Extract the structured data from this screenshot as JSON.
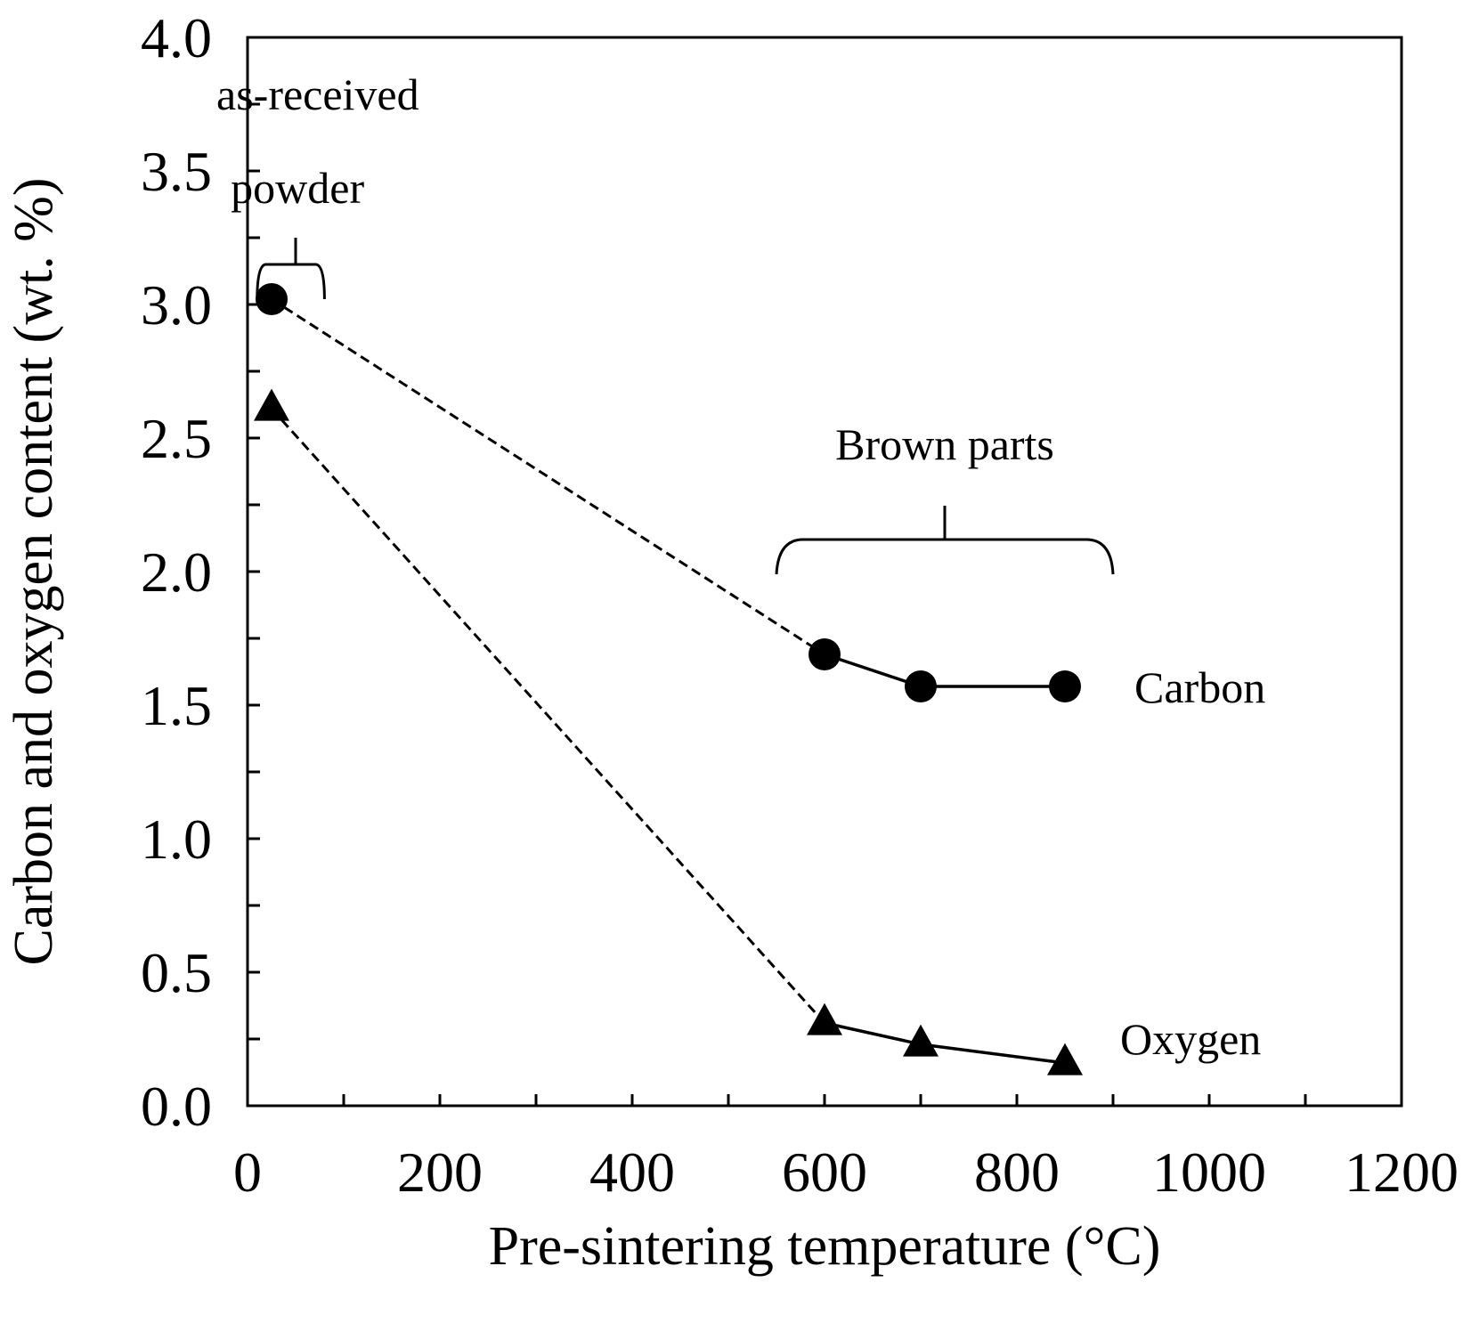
{
  "chart_data": {
    "type": "line",
    "title": "",
    "xlabel": "Pre-sintering temperature (°C)",
    "ylabel": "Carbon and oxygen content (wt. %)",
    "xlim": [
      0,
      1200
    ],
    "ylim": [
      0,
      4.0
    ],
    "xticks": [
      0,
      200,
      400,
      600,
      800,
      1000,
      1200
    ],
    "xtick_labels": [
      "0",
      "200",
      "400",
      "600",
      "800",
      "1000",
      "1200"
    ],
    "yticks": [
      0,
      0.5,
      1.0,
      1.5,
      2.0,
      2.5,
      3.0,
      3.5,
      4.0
    ],
    "ytick_labels": [
      "0.0",
      "0.5",
      "1.0",
      "1.5",
      "2.0",
      "2.5",
      "3.0",
      "3.5",
      "4.0"
    ],
    "grid": false,
    "series": [
      {
        "name": "Carbon",
        "marker": "circle",
        "x": [
          25,
          600,
          700,
          850
        ],
        "y": [
          3.02,
          1.69,
          1.57,
          1.57
        ],
        "dashed_segments": [
          [
            0,
            1
          ]
        ],
        "solid_segments": [
          [
            1,
            2
          ],
          [
            2,
            3
          ]
        ]
      },
      {
        "name": "Oxygen",
        "marker": "triangle",
        "x": [
          25,
          600,
          700,
          850
        ],
        "y": [
          2.61,
          0.31,
          0.23,
          0.16
        ],
        "dashed_segments": [
          [
            0,
            1
          ]
        ],
        "solid_segments": [
          [
            1,
            2
          ],
          [
            2,
            3
          ]
        ]
      }
    ],
    "annotations": [
      {
        "id": "as-received",
        "lines": [
          "as-received",
          "powder"
        ],
        "bracket_x_range": [
          10,
          80
        ],
        "points_to_x": 50
      },
      {
        "id": "brown-parts",
        "lines": [
          "Brown parts"
        ],
        "bracket_x_range": [
          550,
          900
        ],
        "points_to_x": 725
      }
    ]
  }
}
